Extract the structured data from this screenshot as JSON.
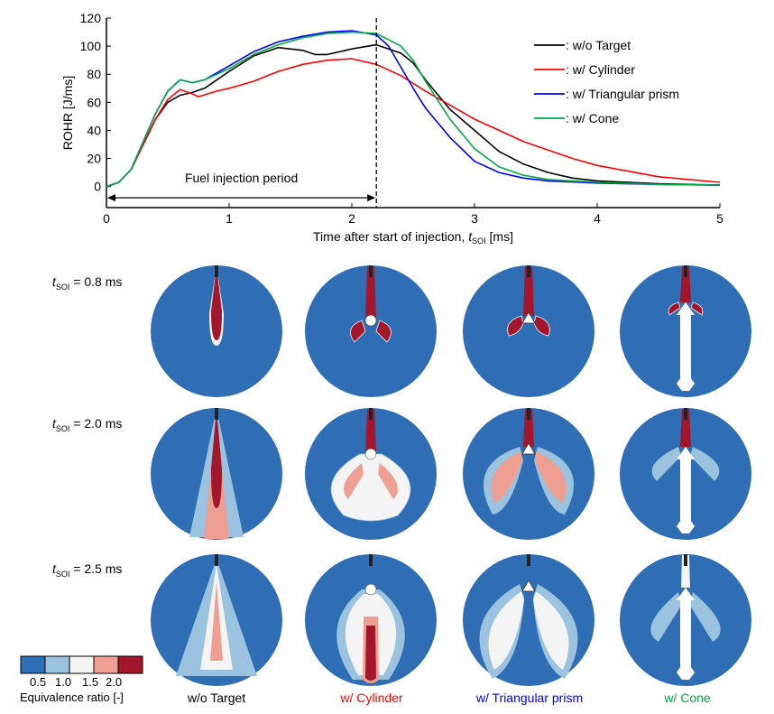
{
  "chart_data": {
    "type": "line",
    "ylabel": "ROHR [J/ms]",
    "xlabel_main": "Time after start of injection, ",
    "xlabel_var": "t",
    "xlabel_sub": "SOI",
    "xlabel_unit": " [ms]",
    "xlim": [
      0,
      5
    ],
    "ylim": [
      -15,
      120
    ],
    "x_ticks": [
      "0",
      "1",
      "2",
      "3",
      "4",
      "5"
    ],
    "y_ticks": [
      "120",
      "100",
      "80",
      "60",
      "40",
      "20",
      "0"
    ],
    "annotation": "Fuel injection period",
    "injection_end_ms": 2.2,
    "series": [
      {
        "name": ": w/o Target",
        "color": "#000000",
        "points": [
          [
            0,
            0
          ],
          [
            0.1,
            3
          ],
          [
            0.2,
            12
          ],
          [
            0.3,
            30
          ],
          [
            0.4,
            48
          ],
          [
            0.5,
            60
          ],
          [
            0.6,
            65
          ],
          [
            0.7,
            67
          ],
          [
            0.8,
            70
          ],
          [
            1.0,
            82
          ],
          [
            1.2,
            93
          ],
          [
            1.4,
            99
          ],
          [
            1.6,
            97
          ],
          [
            1.7,
            94
          ],
          [
            1.8,
            94
          ],
          [
            2.0,
            98
          ],
          [
            2.2,
            101
          ],
          [
            2.4,
            95
          ],
          [
            2.5,
            88
          ],
          [
            2.6,
            76
          ],
          [
            2.8,
            55
          ],
          [
            3.0,
            40
          ],
          [
            3.2,
            25
          ],
          [
            3.4,
            16
          ],
          [
            3.6,
            10
          ],
          [
            3.8,
            6
          ],
          [
            4.0,
            4
          ],
          [
            4.5,
            2
          ],
          [
            5.0,
            1
          ]
        ]
      },
      {
        "name": ": w/ Cylinder",
        "color": "#ff0000",
        "points": [
          [
            0,
            0
          ],
          [
            0.1,
            3
          ],
          [
            0.2,
            12
          ],
          [
            0.3,
            30
          ],
          [
            0.4,
            48
          ],
          [
            0.5,
            62
          ],
          [
            0.6,
            69
          ],
          [
            0.7,
            66
          ],
          [
            0.75,
            64
          ],
          [
            0.9,
            68
          ],
          [
            1.0,
            70
          ],
          [
            1.2,
            75
          ],
          [
            1.4,
            82
          ],
          [
            1.6,
            87
          ],
          [
            1.8,
            90
          ],
          [
            2.0,
            91
          ],
          [
            2.2,
            87
          ],
          [
            2.4,
            79
          ],
          [
            2.6,
            68
          ],
          [
            2.8,
            58
          ],
          [
            3.0,
            48
          ],
          [
            3.2,
            40
          ],
          [
            3.4,
            32
          ],
          [
            3.6,
            26
          ],
          [
            3.8,
            20
          ],
          [
            4.0,
            15
          ],
          [
            4.5,
            7
          ],
          [
            5.0,
            3
          ]
        ]
      },
      {
        "name": ": w/ Triangular prism",
        "color": "#0000ff",
        "points": [
          [
            0,
            0
          ],
          [
            0.1,
            3
          ],
          [
            0.2,
            12
          ],
          [
            0.3,
            32
          ],
          [
            0.4,
            52
          ],
          [
            0.5,
            68
          ],
          [
            0.6,
            76
          ],
          [
            0.7,
            74
          ],
          [
            0.8,
            76
          ],
          [
            1.0,
            86
          ],
          [
            1.2,
            96
          ],
          [
            1.4,
            103
          ],
          [
            1.6,
            107
          ],
          [
            1.8,
            110
          ],
          [
            2.0,
            111
          ],
          [
            2.2,
            108
          ],
          [
            2.3,
            100
          ],
          [
            2.4,
            85
          ],
          [
            2.5,
            70
          ],
          [
            2.6,
            56
          ],
          [
            2.8,
            35
          ],
          [
            3.0,
            18
          ],
          [
            3.2,
            10
          ],
          [
            3.4,
            6
          ],
          [
            3.6,
            4
          ],
          [
            4.0,
            2.5
          ],
          [
            4.5,
            1.5
          ],
          [
            5.0,
            1
          ]
        ]
      },
      {
        "name": ": w/ Cone",
        "color": "#00aa44",
        "points": [
          [
            0,
            0
          ],
          [
            0.1,
            3
          ],
          [
            0.2,
            12
          ],
          [
            0.3,
            32
          ],
          [
            0.4,
            52
          ],
          [
            0.5,
            68
          ],
          [
            0.6,
            76
          ],
          [
            0.7,
            74
          ],
          [
            0.8,
            76
          ],
          [
            1.0,
            84
          ],
          [
            1.2,
            94
          ],
          [
            1.4,
            101
          ],
          [
            1.6,
            106
          ],
          [
            1.8,
            109
          ],
          [
            2.0,
            110
          ],
          [
            2.2,
            109
          ],
          [
            2.4,
            100
          ],
          [
            2.5,
            90
          ],
          [
            2.6,
            75
          ],
          [
            2.8,
            48
          ],
          [
            3.0,
            27
          ],
          [
            3.2,
            14
          ],
          [
            3.4,
            8
          ],
          [
            3.6,
            5
          ],
          [
            4.0,
            3
          ],
          [
            4.5,
            1.5
          ],
          [
            5.0,
            1
          ]
        ]
      }
    ]
  },
  "images": {
    "rows": [
      {
        "t": "t",
        "sub": "SOI",
        "value": " = 0.8 ms"
      },
      {
        "t": "t",
        "sub": "SOI",
        "value": " = 2.0 ms"
      },
      {
        "t": "t",
        "sub": "SOI",
        "value": " = 2.5 ms"
      }
    ],
    "columns": [
      {
        "label": "w/o Target",
        "color": "#000000"
      },
      {
        "label": "w/ Cylinder",
        "color": "#ff0000"
      },
      {
        "label": "w/ Triangular prism",
        "color": "#0000ff"
      },
      {
        "label": "w/ Cone",
        "color": "#00aa44"
      }
    ]
  },
  "colorbar": {
    "title": "Equivalence ratio [-]",
    "ticks": [
      "0.5",
      "1.0",
      "1.5",
      "2.0"
    ],
    "colors": [
      "#2f6db5",
      "#9bc3e0",
      "#f4f4f4",
      "#ef9e92",
      "#a3172d"
    ]
  }
}
